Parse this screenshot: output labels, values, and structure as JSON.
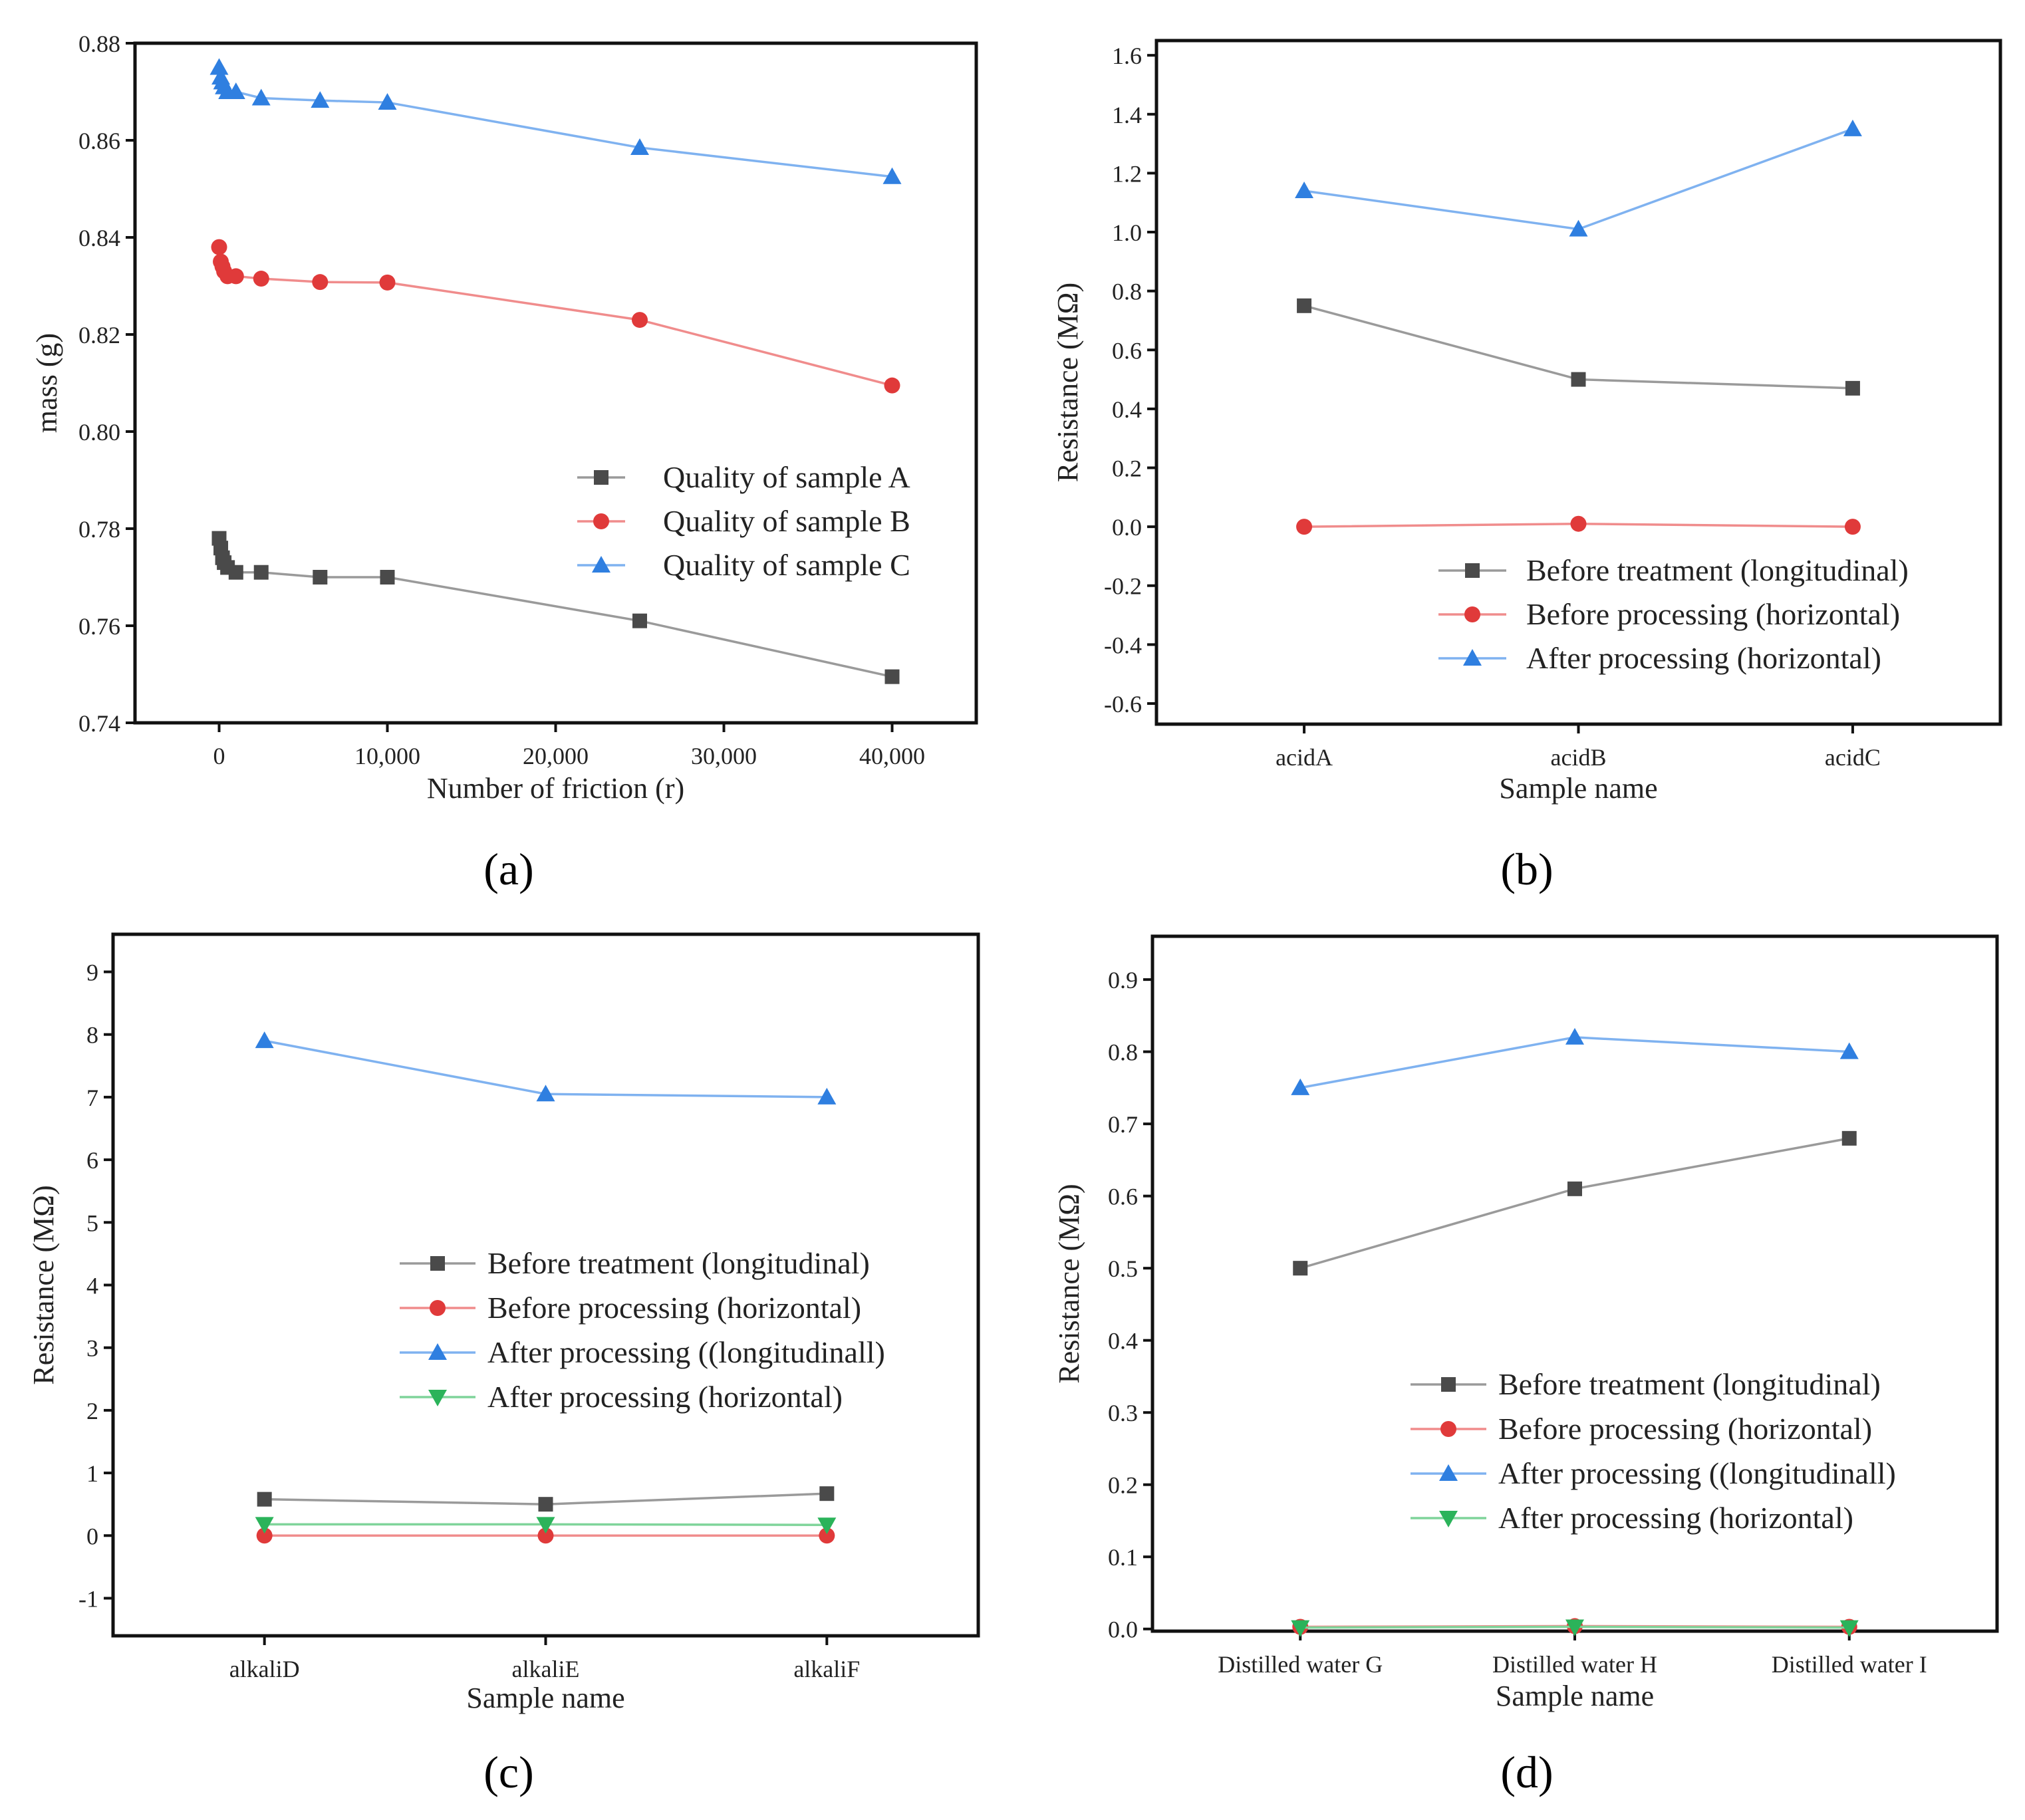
{
  "colors": {
    "series_black": "#4a4a4a",
    "series_black_line": "#9a9a9a",
    "series_red": "#e03a3a",
    "series_red_line": "#f08c8c",
    "series_blue": "#2f7fe0",
    "series_blue_line": "#7fb2f0",
    "series_green": "#2bb35a",
    "series_green_line": "#7fd49a",
    "frame": "#111111"
  },
  "chart_data": [
    {
      "id": "a",
      "panel_label": "(a)",
      "type": "line",
      "title": "",
      "xlabel": "Number of friction (r)",
      "ylabel": "mass (g)",
      "xlim": [
        -5000,
        45000
      ],
      "ylim": [
        0.74,
        0.88
      ],
      "x_numeric": true,
      "xticks": [
        0,
        10000,
        20000,
        30000,
        40000
      ],
      "xtick_labels": [
        "0",
        "10,000",
        "20,000",
        "30,000",
        "40,000"
      ],
      "yticks": [
        0.74,
        0.76,
        0.78,
        0.8,
        0.82,
        0.84,
        0.86,
        0.88
      ],
      "ytick_labels": [
        "0.74",
        "0.76",
        "0.78",
        "0.80",
        "0.82",
        "0.84",
        "0.86",
        "0.88"
      ],
      "legend_position": "bottom-right",
      "series": [
        {
          "name": "Quality of sample A",
          "marker": "square",
          "color": "black",
          "x": [
            0,
            100,
            200,
            300,
            500,
            1000,
            2500,
            6000,
            10000,
            25000,
            40000
          ],
          "y": [
            0.778,
            0.776,
            0.774,
            0.773,
            0.772,
            0.771,
            0.771,
            0.77,
            0.77,
            0.761,
            0.7495
          ]
        },
        {
          "name": "Quality of sample B",
          "marker": "circle",
          "color": "red",
          "x": [
            0,
            100,
            200,
            300,
            500,
            1000,
            2500,
            6000,
            10000,
            25000,
            40000
          ],
          "y": [
            0.838,
            0.835,
            0.834,
            0.833,
            0.832,
            0.832,
            0.8315,
            0.8308,
            0.8307,
            0.823,
            0.8095
          ]
        },
        {
          "name": "Quality of sample C",
          "marker": "triangle-up",
          "color": "blue",
          "x": [
            0,
            100,
            200,
            300,
            500,
            1000,
            2500,
            6000,
            10000,
            25000,
            40000
          ],
          "y": [
            0.875,
            0.873,
            0.872,
            0.871,
            0.87,
            0.87,
            0.8687,
            0.8682,
            0.8678,
            0.8585,
            0.8525
          ]
        }
      ]
    },
    {
      "id": "b",
      "panel_label": "(b)",
      "type": "line",
      "title": "",
      "xlabel": "Sample name",
      "ylabel": "Resistance (MΩ)",
      "categories": [
        "acidA",
        "acidB",
        "acidC"
      ],
      "ylim": [
        -0.67,
        1.65
      ],
      "yticks": [
        -0.6,
        -0.4,
        -0.2,
        0.0,
        0.2,
        0.4,
        0.6,
        0.8,
        1.0,
        1.2,
        1.4,
        1.6
      ],
      "ytick_labels": [
        "-0.6",
        "-0.4",
        "-0.2",
        "0.0",
        "0.2",
        "0.4",
        "0.6",
        "0.8",
        "1.0",
        "1.2",
        "1.4",
        "1.6"
      ],
      "legend_position": "lower-right",
      "series": [
        {
          "name": "Before treatment (longitudinal)",
          "marker": "square",
          "color": "black",
          "values": [
            0.75,
            0.5,
            0.47
          ]
        },
        {
          "name": "Before processing (horizontal)",
          "marker": "circle",
          "color": "red",
          "values": [
            0.0,
            0.01,
            0.0
          ]
        },
        {
          "name": "After processing (horizontal)",
          "marker": "triangle-up",
          "color": "blue",
          "values": [
            1.14,
            1.01,
            1.35
          ]
        }
      ]
    },
    {
      "id": "c",
      "panel_label": "(c)",
      "type": "line",
      "title": "",
      "xlabel": "Sample name",
      "ylabel": "Resistance (MΩ)",
      "categories": [
        "alkaliD",
        "alkaliE",
        "alkaliF"
      ],
      "ylim": [
        -1.6,
        9.6
      ],
      "yticks": [
        -1,
        0,
        1,
        2,
        3,
        4,
        5,
        6,
        7,
        8,
        9
      ],
      "ytick_labels": [
        "-1",
        "0",
        "1",
        "2",
        "3",
        "4",
        "5",
        "6",
        "7",
        "8",
        "9"
      ],
      "legend_position": "center-right",
      "series": [
        {
          "name": "Before treatment (longitudinal)",
          "marker": "square",
          "color": "black",
          "values": [
            0.58,
            0.5,
            0.67
          ]
        },
        {
          "name": "Before processing (horizontal)",
          "marker": "circle",
          "color": "red",
          "values": [
            0.0,
            0.0,
            0.0
          ]
        },
        {
          "name": "After processing ((longitudinall)",
          "marker": "triangle-up",
          "color": "blue",
          "values": [
            7.9,
            7.05,
            7.0
          ]
        },
        {
          "name": "After processing (horizontal)",
          "marker": "triangle-down",
          "color": "green",
          "values": [
            0.18,
            0.18,
            0.17
          ]
        }
      ]
    },
    {
      "id": "d",
      "panel_label": "(d)",
      "type": "line",
      "title": "",
      "xlabel": "Sample name",
      "ylabel": "Resistance (MΩ)",
      "categories": [
        "Distilled water G",
        "Distilled water H",
        "Distilled water I"
      ],
      "ylim": [
        -0.003,
        0.96
      ],
      "yticks": [
        0.0,
        0.1,
        0.2,
        0.3,
        0.4,
        0.5,
        0.6,
        0.7,
        0.8,
        0.9
      ],
      "ytick_labels": [
        "0.0",
        "0.1",
        "0.2",
        "0.3",
        "0.4",
        "0.5",
        "0.6",
        "0.7",
        "0.8",
        "0.9"
      ],
      "legend_position": "lower-right",
      "series": [
        {
          "name": "Before treatment (longitudinal)",
          "marker": "square",
          "color": "black",
          "values": [
            0.5,
            0.61,
            0.68
          ]
        },
        {
          "name": "Before processing (horizontal)",
          "marker": "circle",
          "color": "red",
          "values": [
            0.003,
            0.004,
            0.003
          ]
        },
        {
          "name": "After processing ((longitudinall)",
          "marker": "triangle-up",
          "color": "blue",
          "values": [
            0.75,
            0.82,
            0.8
          ]
        },
        {
          "name": "After processing (horizontal)",
          "marker": "triangle-down",
          "color": "green",
          "values": [
            0.002,
            0.003,
            0.002
          ]
        }
      ]
    }
  ]
}
